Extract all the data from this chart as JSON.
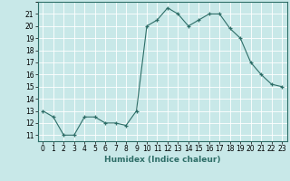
{
  "x": [
    0,
    1,
    2,
    3,
    4,
    5,
    6,
    7,
    8,
    9,
    10,
    11,
    12,
    13,
    14,
    15,
    16,
    17,
    18,
    19,
    20,
    21,
    22,
    23
  ],
  "y": [
    13,
    12.5,
    11,
    11,
    12.5,
    12.5,
    12,
    12,
    11.8,
    13,
    20,
    20.5,
    21.5,
    21,
    20,
    20.5,
    21,
    21,
    19.8,
    19,
    17,
    16,
    15.2,
    15
  ],
  "line_color": "#2e6e68",
  "marker": "+",
  "bg_color": "#c8e8e8",
  "grid_color": "#ffffff",
  "xlabel": "Humidex (Indice chaleur)",
  "xlim": [
    -0.5,
    23.5
  ],
  "ylim": [
    10.5,
    22
  ],
  "yticks": [
    11,
    12,
    13,
    14,
    15,
    16,
    17,
    18,
    19,
    20,
    21
  ],
  "xtick_labels": [
    "0",
    "1",
    "2",
    "3",
    "4",
    "5",
    "6",
    "7",
    "8",
    "9",
    "10",
    "11",
    "12",
    "13",
    "14",
    "15",
    "16",
    "17",
    "18",
    "19",
    "20",
    "21",
    "22",
    "23"
  ],
  "label_fontsize": 6.5,
  "tick_fontsize": 5.5
}
